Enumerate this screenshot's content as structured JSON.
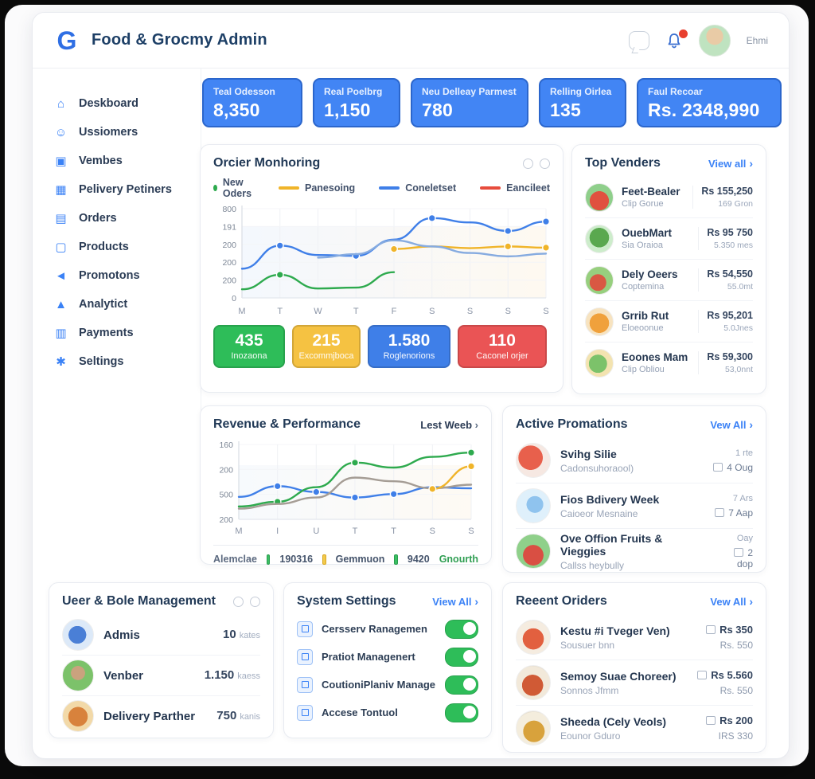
{
  "header": {
    "app_title": "Food & Grocmy Admin",
    "user_name": "Ehmi"
  },
  "sidebar": {
    "items": [
      {
        "label": "Deskboard",
        "icon": "home-icon"
      },
      {
        "label": "Ussiomers",
        "icon": "customers-icon"
      },
      {
        "label": "Vembes",
        "icon": "vendors-icon"
      },
      {
        "label": "Pelivery Petiners",
        "icon": "delivery-partners-icon"
      },
      {
        "label": "Orders",
        "icon": "orders-icon"
      },
      {
        "label": "Products",
        "icon": "products-icon"
      },
      {
        "label": "Promotons",
        "icon": "promotions-icon"
      },
      {
        "label": "Analytict",
        "icon": "analytics-icon"
      },
      {
        "label": "Payments",
        "icon": "payments-icon"
      },
      {
        "label": "Seltings",
        "icon": "settings-icon"
      }
    ]
  },
  "stat_cards": [
    {
      "label": "Teal Odesson",
      "value": "8,350"
    },
    {
      "label": "Real Poelbrg",
      "value": "1,150"
    },
    {
      "label": "Neu Delleay Parmest",
      "value": "780"
    },
    {
      "label": "Relling Oirlea",
      "value": "135"
    },
    {
      "label": "Faul Recoar",
      "value": "Rs. 2348,990"
    }
  ],
  "order_monitoring": {
    "title": "Orcier Monhoring",
    "legend": [
      {
        "label": "New Oders",
        "color": "#2eaa4e"
      },
      {
        "label": "Panesoing",
        "color": "#f0b429"
      },
      {
        "label": "Coneletset",
        "color": "#3f7fe8"
      },
      {
        "label": "Eancileet",
        "color": "#e74c3c"
      }
    ],
    "stats": [
      {
        "value": "435",
        "label": "Inozaona",
        "color": "#2ebd59"
      },
      {
        "value": "215",
        "label": "Excommjboca",
        "color": "#f5c242"
      },
      {
        "value": "1.580",
        "label": "Roglenorions",
        "color": "#3f7fe8"
      },
      {
        "value": "110",
        "label": "Caconel orjer",
        "color": "#ea5455"
      }
    ]
  },
  "top_venders": {
    "title": "Top Venders",
    "view_all": "View all",
    "items": [
      {
        "name": "Feet-Bealer",
        "sub": "Clip Gorue",
        "value": "Rs 155,250",
        "sub_value": "169 Gron"
      },
      {
        "name": "OuebMart",
        "sub": "Sia Oraioa",
        "value": "Rs 95 750",
        "sub_value": "5.350 mes"
      },
      {
        "name": "Dely Oeers",
        "sub": "Coptemina",
        "value": "Rs 54,550",
        "sub_value": "55.0mt"
      },
      {
        "name": "Grrib Rut",
        "sub": "Eloeoonue",
        "value": "Rs 95,201",
        "sub_value": "5.0Jnes"
      },
      {
        "name": "Eoones Mam",
        "sub": "Clip Obliou",
        "value": "Rs 59,300",
        "sub_value": "53,0nnt"
      }
    ]
  },
  "revenue": {
    "title": "Revenue & Performance",
    "period": "Lest Weeb",
    "footer": {
      "label": "Alemclae",
      "metric1": "190316",
      "metric2": "Gemmuon",
      "metric3": "9420",
      "growth": "Gnourth"
    }
  },
  "promotions": {
    "title": "Active Promations",
    "view_all": "Vew All",
    "items": [
      {
        "name": "Svihg Silie",
        "sub": "Cadonsuhoraool)",
        "meta_top": "1 rte",
        "meta_bottom": "4 Oug"
      },
      {
        "name": "Fios Bdivery Week",
        "sub": "Caioeor Mesnaine",
        "meta_top": "7 Ars",
        "meta_bottom": "7 Aap"
      },
      {
        "name": "Ove Offion Fruits & Vieggies",
        "sub": "Callss heybully",
        "meta_top": "Oay",
        "meta_bottom": "2 dop"
      }
    ]
  },
  "user_roles": {
    "title": "Ueer & Bole Management",
    "items": [
      {
        "name": "Admis",
        "count_value": "10",
        "count_unit": "kates"
      },
      {
        "name": "Venber",
        "count_value": "1.150",
        "count_unit": "kaess"
      },
      {
        "name": "Delivery Parther",
        "count_value": "750",
        "count_unit": "kanis"
      }
    ]
  },
  "system_settings": {
    "title": "System Settings",
    "view_all": "View All",
    "items": [
      {
        "label": "Cersserv Ranagemen",
        "enabled": true
      },
      {
        "label": "Pratiot Managenert",
        "enabled": true
      },
      {
        "label": "CoutioniPlaniv Manage",
        "enabled": true
      },
      {
        "label": "Accese Tontuol",
        "enabled": true
      }
    ]
  },
  "recent_orders": {
    "title": "Reeent Oriders",
    "view_all": "Vew All",
    "items": [
      {
        "name": "Kestu #i Tveger Ven)",
        "sub": "Sousuer bnn",
        "value_top": "Rs 350",
        "value_bottom": "Rs. 550"
      },
      {
        "name": "Semoy Suae Choreer)",
        "sub": "Sonnos Jfmm",
        "value_top": "Rs 5.560",
        "value_bottom": "Rs. 550"
      },
      {
        "name": "Sheeda (Cely Veols)",
        "sub": "Eounor Gduro",
        "value_top": "Rs 200",
        "value_bottom": "IRS 330"
      }
    ]
  },
  "chart_data": [
    {
      "type": "line",
      "title": "Orcier Monhoring",
      "x": [
        "M",
        "T",
        "W",
        "T",
        "F",
        "S",
        "S",
        "S",
        "S"
      ],
      "yticks": [
        "800",
        "191",
        "200",
        "200",
        "200",
        "0"
      ],
      "ylim": [
        0,
        520
      ],
      "grid": true,
      "legend_position": "top",
      "series": [
        {
          "name": "New Oders",
          "color": "#2eaa4e",
          "values": [
            50,
            135,
            55,
            60,
            150,
            null,
            null,
            null,
            null
          ],
          "dots": [
            1
          ]
        },
        {
          "name": "Panesoing",
          "color": "#f0b429",
          "values": [
            null,
            null,
            null,
            null,
            285,
            300,
            290,
            300,
            293
          ],
          "dots": [
            4,
            7,
            8
          ]
        },
        {
          "name": "Coneletset",
          "color": "#3f7fe8",
          "values": [
            170,
            305,
            250,
            245,
            340,
            465,
            440,
            390,
            445
          ],
          "dots": [
            1,
            3,
            5,
            7,
            8
          ]
        },
        {
          "name": "Coneletset-secondary",
          "color": "#86abe0",
          "values": [
            null,
            null,
            235,
            255,
            335,
            300,
            262,
            242,
            258
          ],
          "dots": []
        },
        {
          "name": "Eancileet",
          "color": "#e74c3c",
          "values": [],
          "dots": []
        }
      ]
    },
    {
      "type": "line",
      "title": "Revenue & Performance",
      "x": [
        "M",
        "I",
        "U",
        "T",
        "T",
        "S",
        "S"
      ],
      "yticks": [
        "160",
        "200",
        "500",
        "200"
      ],
      "ylim": [
        150,
        500
      ],
      "grid": true,
      "series": [
        {
          "name": "series-blue",
          "color": "#3f7fe8",
          "values": [
            255,
            305,
            278,
            252,
            268,
            300,
            295
          ],
          "dots": [
            1,
            2,
            3,
            4
          ]
        },
        {
          "name": "series-green",
          "color": "#2eaa4e",
          "values": [
            210,
            232,
            300,
            415,
            392,
            442,
            462
          ],
          "dots": [
            1,
            3,
            6
          ]
        },
        {
          "name": "series-gray",
          "color": "#a59d95",
          "values": [
            200,
            222,
            252,
            345,
            328,
            295,
            312
          ],
          "dots": []
        },
        {
          "name": "series-yellow",
          "color": "#f0b429",
          "values": [
            null,
            null,
            null,
            null,
            null,
            292,
            398
          ],
          "dots": [
            5,
            6
          ]
        }
      ]
    }
  ]
}
